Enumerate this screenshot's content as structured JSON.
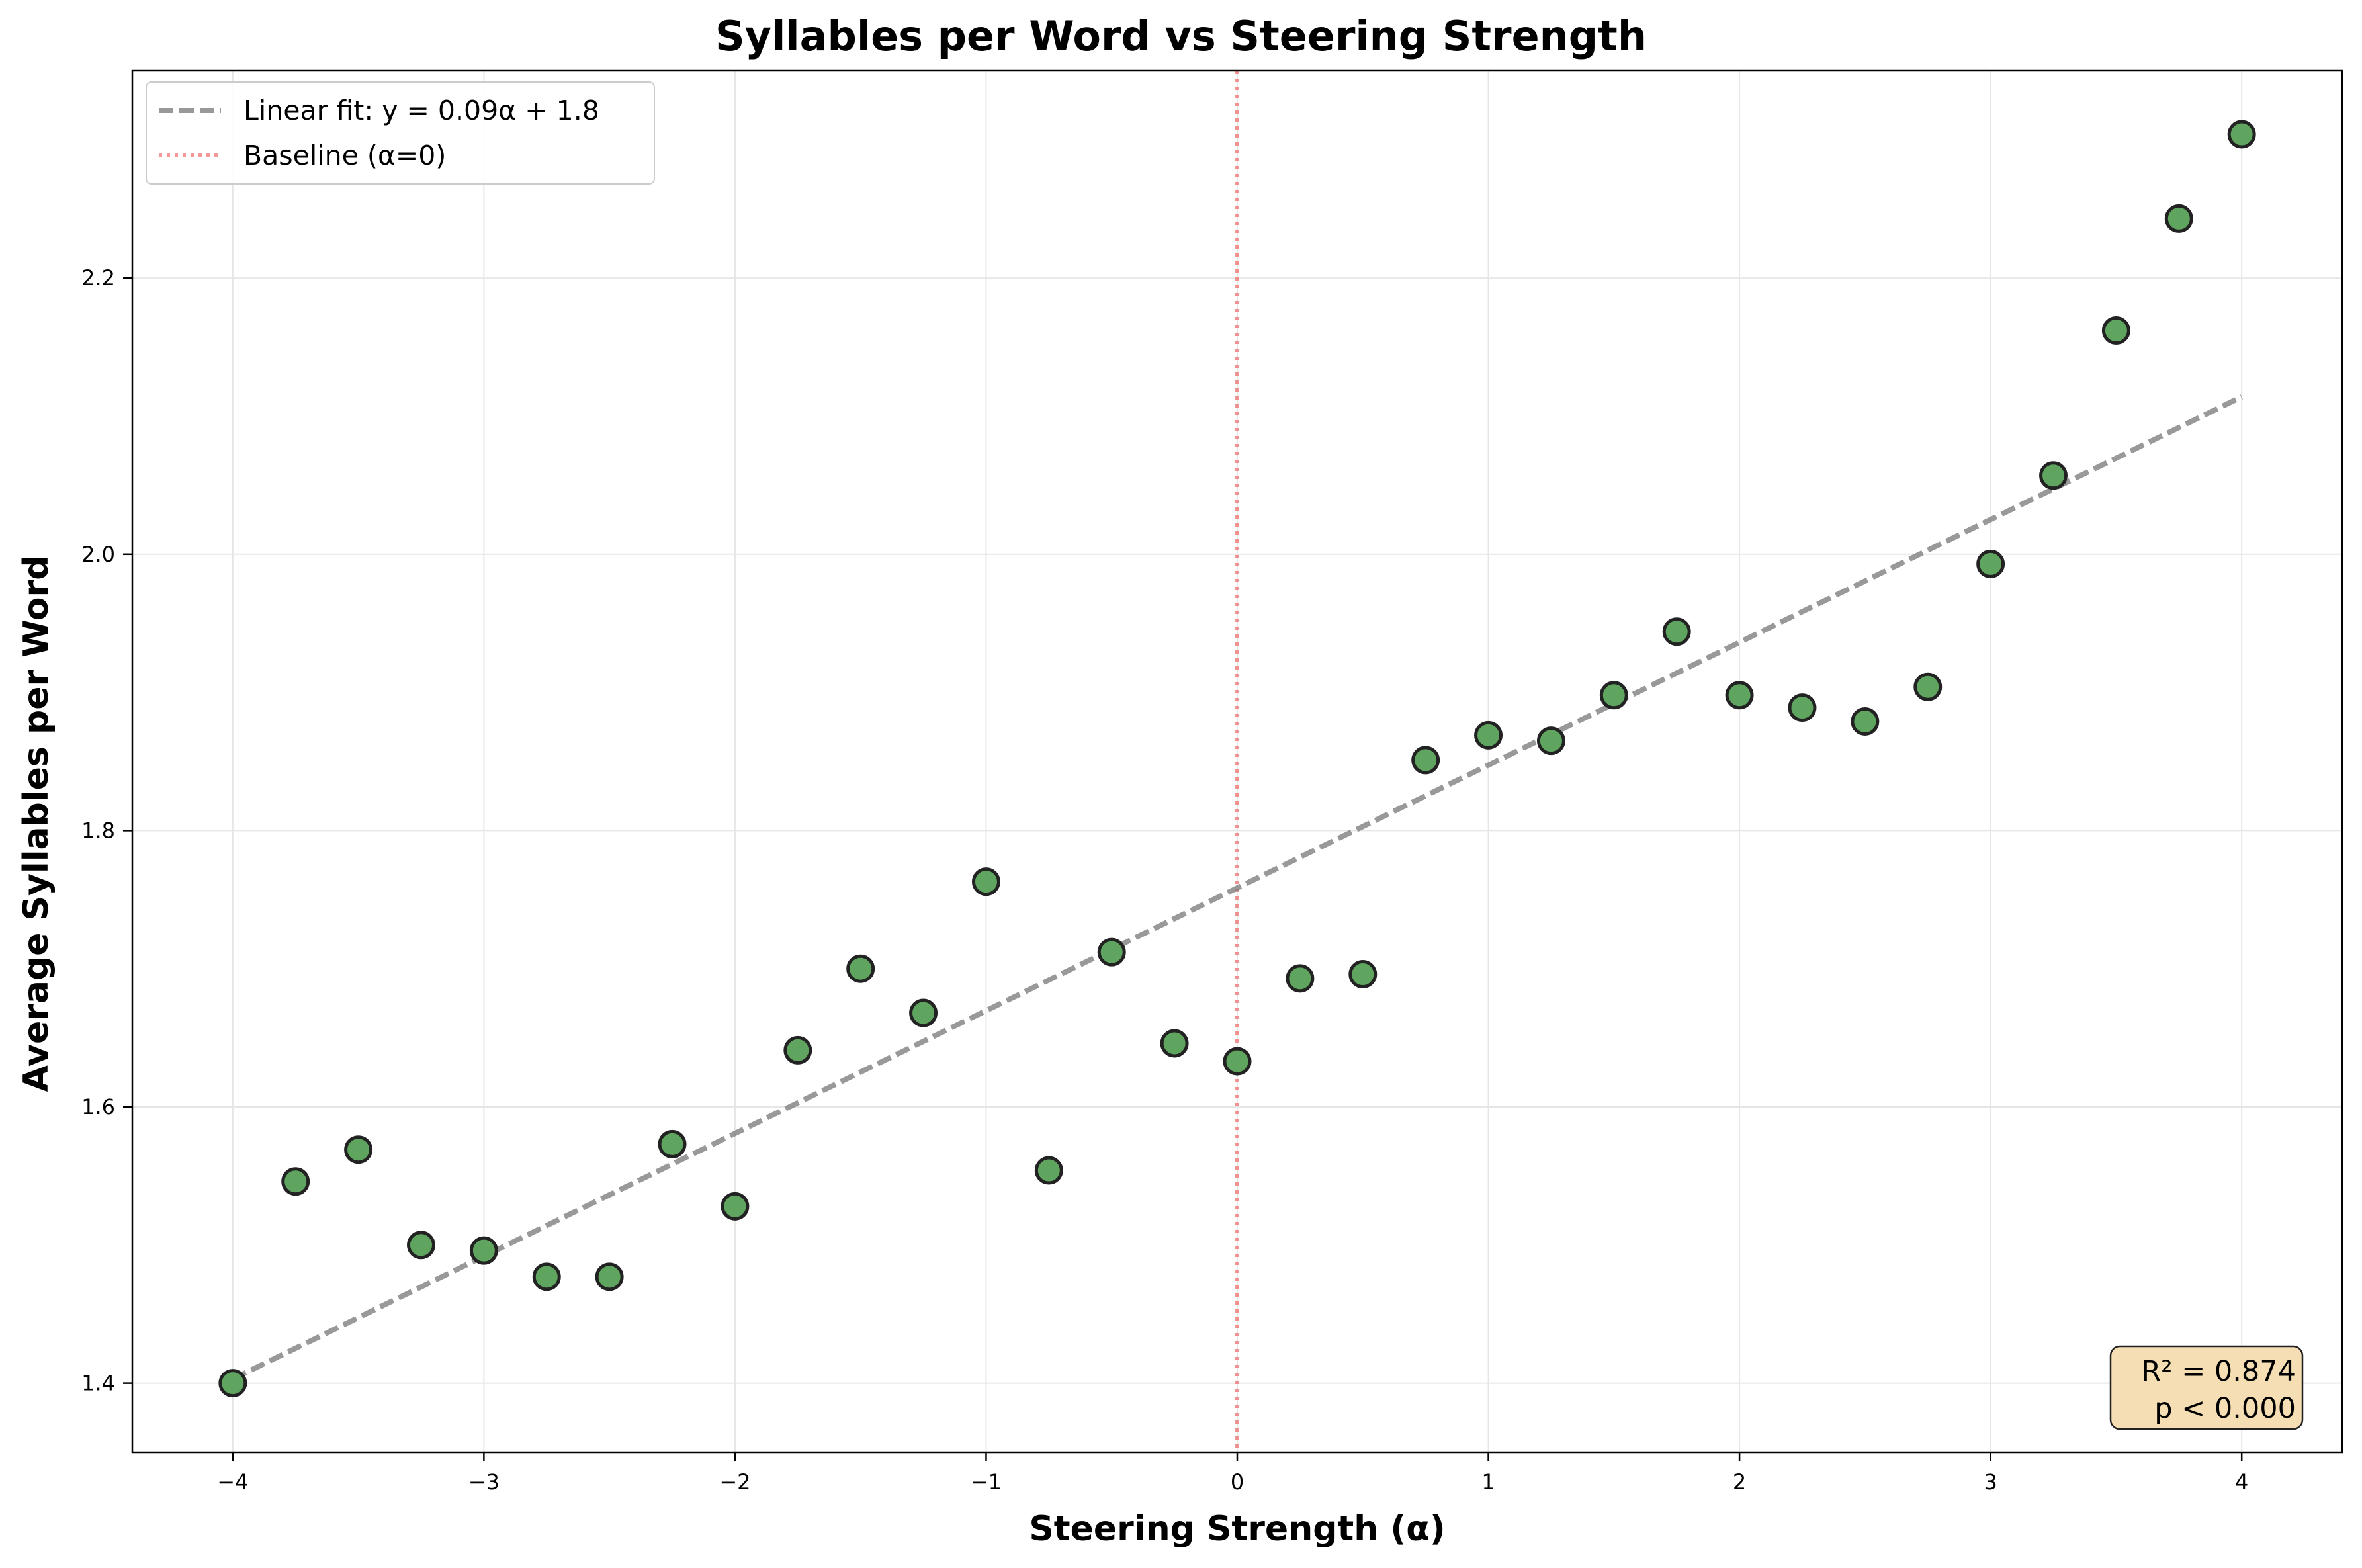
{
  "chart_data": {
    "type": "scatter",
    "title": "Syllables per Word vs Steering Strength",
    "xlabel": "Steering Strength (α)",
    "ylabel": "Average Syllables per Word",
    "xlim": [
      -4.4,
      4.4
    ],
    "ylim": [
      1.35,
      2.35
    ],
    "xticks": [
      -4,
      -3,
      -2,
      -1,
      0,
      1,
      2,
      3,
      4
    ],
    "xtick_labels": [
      "−4",
      "−3",
      "−2",
      "−1",
      "0",
      "1",
      "2",
      "3",
      "4"
    ],
    "yticks": [
      1.4,
      1.6,
      1.8,
      2.0,
      2.2
    ],
    "ytick_labels": [
      "1.4",
      "1.6",
      "1.8",
      "2.0",
      "2.2"
    ],
    "grid": true,
    "legend_position": "top-left",
    "legend": [
      {
        "label": "Linear fit: y = 0.09α + 1.8",
        "style": "dashed",
        "color": "#808080"
      },
      {
        "label": "Baseline (α=0)",
        "style": "dotted",
        "color": "#f08080"
      }
    ],
    "points": {
      "x": [
        -4,
        -3.75,
        -3.5,
        -3.25,
        -3,
        -2.75,
        -2.5,
        -2.25,
        -2,
        -1.75,
        -1.5,
        -1.25,
        -1,
        -0.75,
        -0.5,
        -0.25,
        0,
        0.25,
        0.5,
        0.75,
        1,
        1.25,
        1.5,
        1.75,
        2,
        2.25,
        2.5,
        2.75,
        3,
        3.25,
        3.5,
        3.75,
        4
      ],
      "y": [
        1.4,
        1.546,
        1.569,
        1.5,
        1.496,
        1.477,
        1.477,
        1.573,
        1.528,
        1.641,
        1.7,
        1.668,
        1.763,
        1.554,
        1.712,
        1.646,
        1.633,
        1.693,
        1.696,
        1.851,
        1.869,
        1.865,
        1.898,
        1.944,
        1.898,
        1.889,
        1.879,
        1.904,
        1.993,
        2.057,
        2.162,
        2.243,
        2.304
      ],
      "color": "#5fa45f",
      "edge_color": "#222222"
    },
    "fit_line": {
      "x": [
        -4,
        4
      ],
      "y": [
        1.403,
        2.114
      ],
      "color": "#808080",
      "style": "dashed"
    },
    "baseline": {
      "x": 0,
      "color": "#f08080",
      "style": "dotted"
    },
    "annotation": {
      "lines": [
        "R² = 0.874",
        "p < 0.000"
      ],
      "position": "bottom-right",
      "background": "#f5deb3"
    }
  }
}
